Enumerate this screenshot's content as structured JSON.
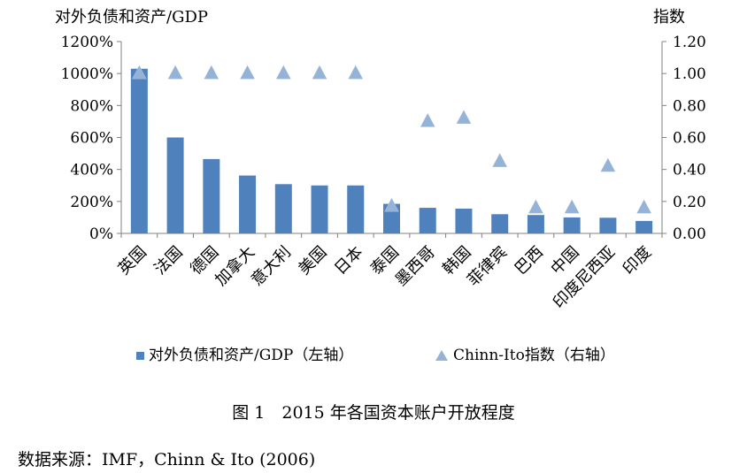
{
  "chart_data": {
    "type": "bar",
    "left_axis_title": "对外负债和资产/GDP",
    "right_axis_title": "指数",
    "categories": [
      "英国",
      "法国",
      "德国",
      "加拿大",
      "意大利",
      "美国",
      "日本",
      "泰国",
      "墨西哥",
      "韩国",
      "菲律宾",
      "巴西",
      "中国",
      "印度尼西亚",
      "印度"
    ],
    "series": [
      {
        "name": "对外负债和资产/GDP（左轴）",
        "type": "bar",
        "axis": "left",
        "color": "#4f81bd",
        "values": [
          1030,
          600,
          465,
          362,
          308,
          300,
          300,
          185,
          160,
          155,
          120,
          115,
          100,
          98,
          78
        ]
      },
      {
        "name": "Chinn-Ito指数（右轴）",
        "type": "marker",
        "marker": "triangle",
        "axis": "right",
        "color": "#95b3d7",
        "values": [
          1.0,
          1.0,
          1.0,
          1.0,
          1.0,
          1.0,
          1.0,
          0.17,
          0.7,
          0.72,
          0.45,
          0.16,
          0.16,
          0.42,
          0.16
        ]
      }
    ],
    "ylim_left": [
      0,
      1200
    ],
    "ylim_right": [
      0,
      1.2
    ],
    "left_ticks": [
      "0%",
      "200%",
      "400%",
      "600%",
      "800%",
      "1000%",
      "1200%"
    ],
    "right_ticks": [
      "0.00",
      "0.20",
      "0.40",
      "0.60",
      "0.80",
      "1.00",
      "1.20"
    ],
    "grid": false,
    "legend_position": "bottom"
  },
  "caption": "图 1　2015 年各国资本账户开放程度",
  "source": "数据来源：IMF，Chinn & Ito (2006)"
}
